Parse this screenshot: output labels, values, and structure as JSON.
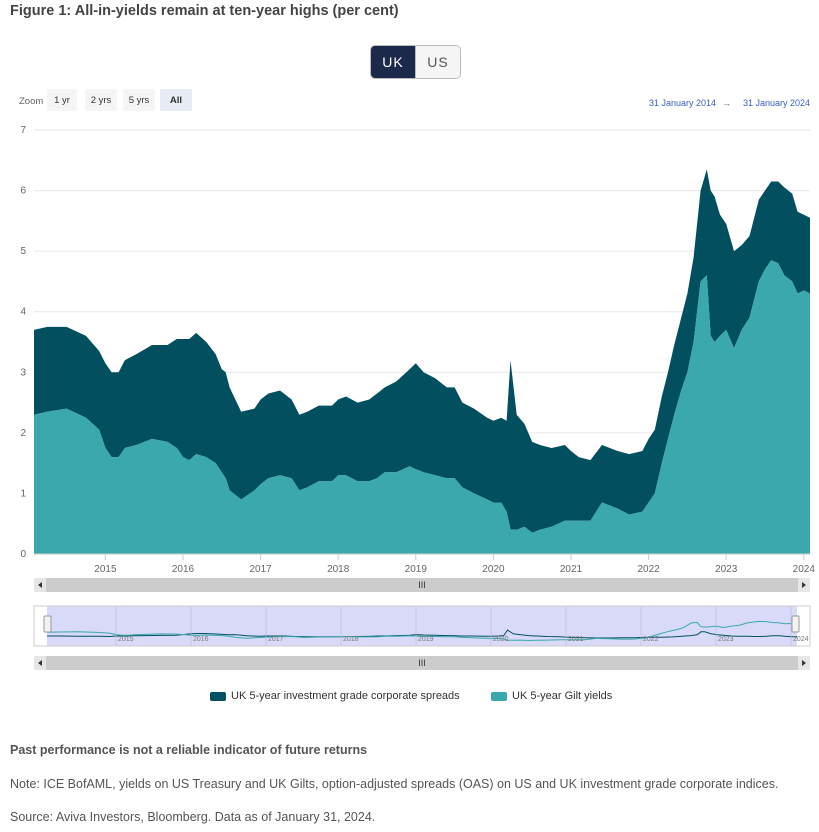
{
  "figure_title": "Figure 1: All-in-yields remain at ten-year highs (per cent)",
  "region_toggle": {
    "options": [
      "UK",
      "US"
    ],
    "selected": "UK"
  },
  "zoom": {
    "label": "Zoom",
    "options": [
      "1 yr",
      "2 yrs",
      "5 yrs",
      "All"
    ],
    "selected": "All"
  },
  "date_range": {
    "from": "31 January 2014",
    "arrow": "→",
    "to": "31 January 2024"
  },
  "navigator_handle": "III",
  "footer": {
    "disclaimer": "Past performance is not a reliable indicator of future returns",
    "note": "Note: ICE BofAML, yields on US Treasury and UK Gilts, option-adjusted spreads (OAS) on US and UK investment grade corporate indices.",
    "source": "Source: Aviva Investors, Bloomberg. Data as of January 31, 2024."
  },
  "colors": {
    "spreads": "#02505f",
    "gilts": "#3aa8ac",
    "navigator_fill": "#d4d6f7",
    "toggle_active": "#1b2a4a"
  },
  "chart_data": {
    "type": "area",
    "stacked": true,
    "title": "",
    "xlabel": "",
    "ylabel": "",
    "ylim": [
      0,
      7
    ],
    "yticks": [
      0,
      1,
      2,
      3,
      4,
      5,
      6,
      7
    ],
    "xlim": [
      2014.08,
      2024.08
    ],
    "xticks": [
      2015,
      2016,
      2017,
      2018,
      2019,
      2020,
      2021,
      2022,
      2023,
      2024
    ],
    "legend_position": "bottom",
    "grid": "horizontal",
    "x": [
      2014.08,
      2014.25,
      2014.5,
      2014.75,
      2014.92,
      2015.0,
      2015.08,
      2015.17,
      2015.25,
      2015.4,
      2015.6,
      2015.8,
      2015.92,
      2016.0,
      2016.08,
      2016.17,
      2016.3,
      2016.42,
      2016.5,
      2016.55,
      2016.6,
      2016.75,
      2016.92,
      2017.0,
      2017.1,
      2017.25,
      2017.4,
      2017.5,
      2017.6,
      2017.75,
      2017.92,
      2018.0,
      2018.1,
      2018.25,
      2018.4,
      2018.5,
      2018.6,
      2018.75,
      2018.92,
      2019.0,
      2019.1,
      2019.25,
      2019.4,
      2019.5,
      2019.6,
      2019.75,
      2019.92,
      2020.0,
      2020.1,
      2020.17,
      2020.22,
      2020.3,
      2020.4,
      2020.5,
      2020.6,
      2020.75,
      2020.92,
      2021.0,
      2021.1,
      2021.25,
      2021.4,
      2021.5,
      2021.6,
      2021.75,
      2021.92,
      2022.0,
      2022.08,
      2022.17,
      2022.25,
      2022.33,
      2022.42,
      2022.5,
      2022.58,
      2022.67,
      2022.75,
      2022.8,
      2022.85,
      2022.92,
      2023.0,
      2023.1,
      2023.2,
      2023.3,
      2023.42,
      2023.5,
      2023.58,
      2023.67,
      2023.75,
      2023.85,
      2023.92,
      2024.0,
      2024.08
    ],
    "series": [
      {
        "name": "UK 5-year investment grade corporate spreads",
        "values": [
          1.4,
          1.4,
          1.35,
          1.35,
          1.3,
          1.4,
          1.4,
          1.4,
          1.45,
          1.5,
          1.55,
          1.6,
          1.8,
          1.95,
          2.0,
          2.0,
          1.9,
          1.8,
          1.7,
          1.75,
          1.7,
          1.45,
          1.35,
          1.4,
          1.4,
          1.4,
          1.3,
          1.25,
          1.25,
          1.25,
          1.25,
          1.25,
          1.3,
          1.3,
          1.35,
          1.4,
          1.4,
          1.5,
          1.6,
          1.75,
          1.65,
          1.6,
          1.5,
          1.5,
          1.4,
          1.4,
          1.35,
          1.35,
          1.4,
          1.5,
          2.8,
          1.9,
          1.7,
          1.5,
          1.4,
          1.3,
          1.25,
          1.15,
          1.05,
          1.0,
          0.95,
          0.95,
          0.95,
          1.0,
          1.0,
          1.05,
          1.05,
          1.1,
          1.1,
          1.15,
          1.2,
          1.3,
          1.4,
          1.5,
          1.75,
          2.4,
          2.4,
          2.0,
          1.75,
          1.6,
          1.4,
          1.35,
          1.35,
          1.3,
          1.3,
          1.35,
          1.45,
          1.45,
          1.35,
          1.25,
          1.25
        ]
      },
      {
        "name": "UK 5-year Gilt yields",
        "values": [
          2.3,
          2.35,
          2.4,
          2.25,
          2.05,
          1.75,
          1.6,
          1.6,
          1.75,
          1.8,
          1.9,
          1.85,
          1.75,
          1.6,
          1.55,
          1.65,
          1.6,
          1.5,
          1.35,
          1.25,
          1.05,
          0.9,
          1.05,
          1.15,
          1.25,
          1.3,
          1.25,
          1.05,
          1.1,
          1.2,
          1.2,
          1.3,
          1.3,
          1.2,
          1.2,
          1.25,
          1.35,
          1.35,
          1.45,
          1.4,
          1.35,
          1.3,
          1.25,
          1.25,
          1.1,
          1.0,
          0.9,
          0.85,
          0.85,
          0.7,
          0.4,
          0.4,
          0.45,
          0.35,
          0.4,
          0.45,
          0.55,
          0.55,
          0.55,
          0.55,
          0.85,
          0.8,
          0.75,
          0.65,
          0.7,
          0.85,
          1.0,
          1.5,
          1.9,
          2.3,
          2.7,
          3.0,
          3.5,
          4.5,
          4.6,
          3.6,
          3.5,
          3.6,
          3.7,
          3.4,
          3.7,
          3.9,
          4.5,
          4.7,
          4.85,
          4.8,
          4.6,
          4.5,
          4.3,
          4.35,
          4.3
        ]
      }
    ]
  }
}
